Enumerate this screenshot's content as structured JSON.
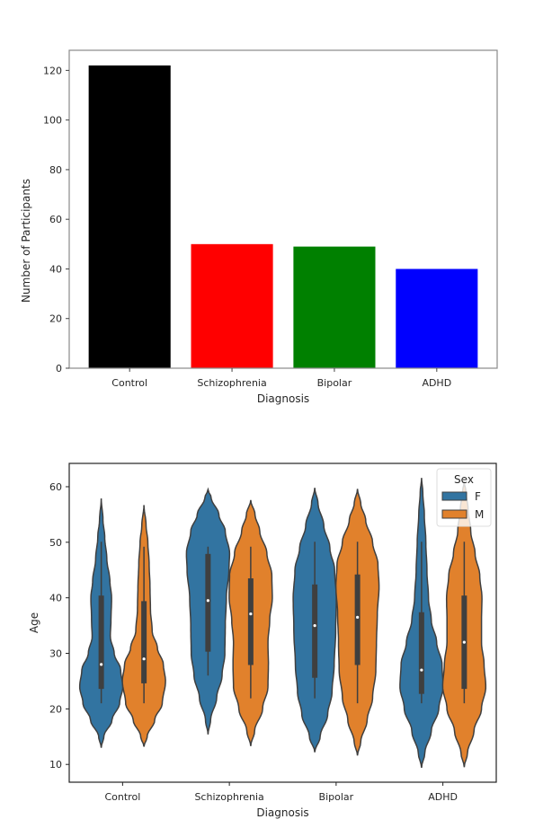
{
  "chart_data": [
    {
      "type": "bar",
      "title": "",
      "xlabel": "Diagnosis",
      "ylabel": "Number of Participants",
      "categories": [
        "Control",
        "Schizophrenia",
        "Bipolar",
        "ADHD"
      ],
      "values": [
        122,
        50,
        49,
        40
      ],
      "colors": [
        "#000000",
        "#ff0000",
        "#008000",
        "#0000ff"
      ],
      "ylim": [
        0,
        128.1
      ],
      "yticks": [
        0,
        20,
        40,
        60,
        80,
        100,
        120
      ],
      "grid": false
    },
    {
      "type": "violin",
      "title": "",
      "xlabel": "Diagnosis",
      "ylabel": "Age",
      "categories": [
        "Control",
        "Schizophrenia",
        "Bipolar",
        "ADHD"
      ],
      "ylim": [
        6.8,
        64.2
      ],
      "yticks": [
        10,
        20,
        30,
        40,
        50,
        60
      ],
      "legend": {
        "title": "Sex",
        "position": "top-right",
        "entries": [
          {
            "label": "F",
            "color": "#3274a1"
          },
          {
            "label": "M",
            "color": "#e1812c"
          }
        ]
      },
      "series": [
        {
          "name": "F",
          "violins": [
            {
              "min": 13,
              "max": 57.9,
              "q1": 23.6,
              "median": 28,
              "q3": 40.4,
              "whisker_low": 21,
              "whisker_high": 50.1,
              "profile": [
                [
                  13,
                  0
                ],
                [
                  15,
                  0.12
                ],
                [
                  18,
                  0.5
                ],
                [
                  21,
                  0.85
                ],
                [
                  24,
                  1
                ],
                [
                  27,
                  0.9
                ],
                [
                  30,
                  0.6
                ],
                [
                  33,
                  0.42
                ],
                [
                  36,
                  0.45
                ],
                [
                  40,
                  0.48
                ],
                [
                  43,
                  0.4
                ],
                [
                  47,
                  0.26
                ],
                [
                  51,
                  0.16
                ],
                [
                  54,
                  0.08
                ],
                [
                  57.9,
                  0
                ]
              ]
            },
            {
              "min": 15.4,
              "max": 59.5,
              "q1": 30.3,
              "median": 39.5,
              "q3": 47.9,
              "whisker_low": 26,
              "whisker_high": 49.2,
              "profile": [
                [
                  15.4,
                  0
                ],
                [
                  18,
                  0.12
                ],
                [
                  22,
                  0.4
                ],
                [
                  26,
                  0.65
                ],
                [
                  30,
                  0.78
                ],
                [
                  35,
                  0.8
                ],
                [
                  40,
                  0.85
                ],
                [
                  45,
                  0.97
                ],
                [
                  48,
                  1
                ],
                [
                  52,
                  0.8
                ],
                [
                  55,
                  0.5
                ],
                [
                  58,
                  0.15
                ],
                [
                  59.5,
                  0
                ]
              ]
            },
            {
              "min": 12.2,
              "max": 59.8,
              "q1": 25.6,
              "median": 35,
              "q3": 42.4,
              "whisker_low": 21.9,
              "whisker_high": 50.1,
              "profile": [
                [
                  12.2,
                  0
                ],
                [
                  15,
                  0.25
                ],
                [
                  19,
                  0.6
                ],
                [
                  23,
                  0.8
                ],
                [
                  28,
                  0.9
                ],
                [
                  34,
                  0.97
                ],
                [
                  40,
                  1
                ],
                [
                  45,
                  0.92
                ],
                [
                  49,
                  0.7
                ],
                [
                  53,
                  0.42
                ],
                [
                  57,
                  0.15
                ],
                [
                  59.8,
                  0
                ]
              ]
            },
            {
              "min": 9.4,
              "max": 61.6,
              "q1": 22.7,
              "median": 27,
              "q3": 37.4,
              "whisker_low": 21,
              "whisker_high": 50.1,
              "profile": [
                [
                  9.4,
                  0
                ],
                [
                  12,
                  0.15
                ],
                [
                  16,
                  0.45
                ],
                [
                  20,
                  0.8
                ],
                [
                  24,
                  1
                ],
                [
                  28,
                  0.95
                ],
                [
                  32,
                  0.7
                ],
                [
                  36,
                  0.45
                ],
                [
                  40,
                  0.32
                ],
                [
                  45,
                  0.25
                ],
                [
                  50,
                  0.2
                ],
                [
                  55,
                  0.13
                ],
                [
                  59,
                  0.06
                ],
                [
                  61.6,
                  0
                ]
              ]
            }
          ]
        },
        {
          "name": "M",
          "violins": [
            {
              "min": 13.2,
              "max": 56.7,
              "q1": 24.6,
              "median": 29,
              "q3": 39.4,
              "whisker_low": 21,
              "whisker_high": 49.2,
              "profile": [
                [
                  13.2,
                  0
                ],
                [
                  15,
                  0.15
                ],
                [
                  18,
                  0.5
                ],
                [
                  21,
                  0.85
                ],
                [
                  25,
                  1
                ],
                [
                  28,
                  0.9
                ],
                [
                  31,
                  0.62
                ],
                [
                  34,
                  0.38
                ],
                [
                  38,
                  0.3
                ],
                [
                  42,
                  0.28
                ],
                [
                  46,
                  0.24
                ],
                [
                  50,
                  0.18
                ],
                [
                  53,
                  0.1
                ],
                [
                  56.7,
                  0
                ]
              ]
            },
            {
              "min": 13.3,
              "max": 57.6,
              "q1": 27.9,
              "median": 37.1,
              "q3": 43.5,
              "whisker_low": 21.9,
              "whisker_high": 49.2,
              "profile": [
                [
                  13.3,
                  0
                ],
                [
                  16,
                  0.18
                ],
                [
                  20,
                  0.55
                ],
                [
                  24,
                  0.8
                ],
                [
                  28,
                  0.82
                ],
                [
                  32,
                  0.8
                ],
                [
                  36,
                  0.88
                ],
                [
                  40,
                  1
                ],
                [
                  44,
                  0.98
                ],
                [
                  48,
                  0.75
                ],
                [
                  52,
                  0.42
                ],
                [
                  55,
                  0.2
                ],
                [
                  57.6,
                  0
                ]
              ]
            },
            {
              "min": 11.6,
              "max": 59.6,
              "q1": 27.9,
              "median": 36.5,
              "q3": 44.2,
              "whisker_low": 21,
              "whisker_high": 50.1,
              "profile": [
                [
                  11.6,
                  0
                ],
                [
                  14,
                  0.15
                ],
                [
                  18,
                  0.45
                ],
                [
                  22,
                  0.7
                ],
                [
                  27,
                  0.85
                ],
                [
                  32,
                  0.88
                ],
                [
                  37,
                  0.92
                ],
                [
                  42,
                  1
                ],
                [
                  46,
                  0.95
                ],
                [
                  50,
                  0.7
                ],
                [
                  54,
                  0.38
                ],
                [
                  57,
                  0.15
                ],
                [
                  59.6,
                  0
                ]
              ]
            },
            {
              "min": 9.5,
              "max": 61,
              "q1": 23.6,
              "median": 32,
              "q3": 40.4,
              "whisker_low": 21,
              "whisker_high": 50.1,
              "profile": [
                [
                  9.5,
                  0
                ],
                [
                  12,
                  0.15
                ],
                [
                  16,
                  0.45
                ],
                [
                  20,
                  0.8
                ],
                [
                  24,
                  1
                ],
                [
                  28,
                  0.92
                ],
                [
                  32,
                  0.8
                ],
                [
                  36,
                  0.8
                ],
                [
                  40,
                  0.82
                ],
                [
                  44,
                  0.72
                ],
                [
                  48,
                  0.5
                ],
                [
                  52,
                  0.3
                ],
                [
                  56,
                  0.18
                ],
                [
                  59,
                  0.08
                ],
                [
                  61,
                  0
                ]
              ]
            }
          ]
        }
      ]
    }
  ]
}
